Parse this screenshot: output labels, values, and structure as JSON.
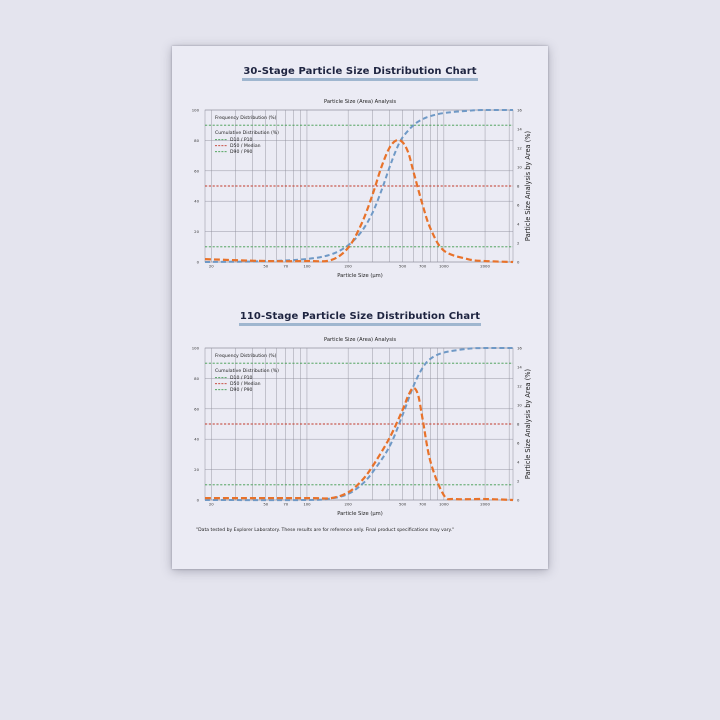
{
  "chart_data": [
    {
      "type": "line",
      "title": "30-Stage Particle Size Distribution Chart",
      "subtitle": "Particle Size (Area) Analysis",
      "xlabel": "Particle Size (µm)",
      "y2label": "Particle Size Analysis by Area (%)",
      "xscale": "log",
      "xlim": [
        18,
        3200
      ],
      "x_ticks": [
        20,
        50,
        70,
        100,
        200,
        500,
        700,
        1000,
        2000
      ],
      "ylim": [
        0,
        100
      ],
      "y_ticks": [
        0,
        20,
        40,
        60,
        80,
        100
      ],
      "y2lim": [
        0,
        16
      ],
      "y2_ticks": [
        0,
        2,
        4,
        6,
        8,
        10,
        12,
        14,
        16
      ],
      "grid": true,
      "legend": {
        "position": "top-left",
        "items": [
          {
            "label": "Frequency Distribution (%)",
            "color": "#e8722a"
          },
          {
            "label": "Cumulative Distribution (%)",
            "color": "#6f99c6"
          },
          {
            "label": "D10 / P10",
            "color": "#3c9a4a"
          },
          {
            "label": "D50 / Median",
            "color": "#c23a2a"
          },
          {
            "label": "D90 / P90",
            "color": "#3c9a4a"
          }
        ]
      },
      "reference_lines": [
        {
          "name": "D10 / P10",
          "y": 10,
          "color": "#3c9a4a"
        },
        {
          "name": "D50 / Median",
          "y": 50,
          "color": "#c23a2a"
        },
        {
          "name": "D90 / P90",
          "y": 90,
          "color": "#3c9a4a"
        }
      ],
      "series": [
        {
          "name": "Cumulative Distribution (%)",
          "axis": "left",
          "color": "#6f99c6",
          "x": [
            18,
            50,
            100,
            150,
            200,
            250,
            300,
            350,
            400,
            450,
            500,
            600,
            700,
            800,
            1000,
            1500,
            2000,
            3200
          ],
          "y": [
            0,
            0.5,
            2,
            5,
            11,
            20,
            32,
            47,
            62,
            74,
            82,
            90,
            94,
            96,
            98,
            99.5,
            100,
            100
          ]
        },
        {
          "name": "Frequency Distribution (%)",
          "axis": "right",
          "color": "#e8722a",
          "x": [
            18,
            50,
            100,
            150,
            200,
            250,
            300,
            350,
            400,
            450,
            500,
            550,
            600,
            700,
            800,
            1000,
            1500,
            2000,
            3200
          ],
          "y": [
            0.3,
            0.1,
            0.1,
            0.2,
            1.5,
            4,
            7,
            10,
            12,
            12.8,
            12.6,
            11.5,
            9.5,
            6,
            3.5,
            1.2,
            0.3,
            0.1,
            0
          ]
        }
      ]
    },
    {
      "type": "line",
      "title": "110-Stage Particle Size Distribution Chart",
      "subtitle": "Particle Size (Area) Analysis",
      "xlabel": "Particle Size (µm)",
      "y2label": "Particle Size Analysis by Area (%)",
      "xscale": "log",
      "xlim": [
        18,
        3200
      ],
      "x_ticks": [
        20,
        50,
        70,
        100,
        200,
        500,
        700,
        1000,
        2000
      ],
      "ylim": [
        0,
        100
      ],
      "y_ticks": [
        0,
        20,
        40,
        60,
        80,
        100
      ],
      "y2lim": [
        0,
        16
      ],
      "y2_ticks": [
        0,
        2,
        4,
        6,
        8,
        10,
        12,
        14,
        16
      ],
      "grid": true,
      "legend": {
        "position": "top-left",
        "items": [
          {
            "label": "Frequency Distribution (%)",
            "color": "#e8722a"
          },
          {
            "label": "Cumulative Distribution (%)",
            "color": "#6f99c6"
          },
          {
            "label": "D10 / P10",
            "color": "#3c9a4a"
          },
          {
            "label": "D50 / Median",
            "color": "#c23a2a"
          },
          {
            "label": "D90 / P90",
            "color": "#3c9a4a"
          }
        ]
      },
      "reference_lines": [
        {
          "name": "D10 / P10",
          "y": 10,
          "color": "#3c9a4a"
        },
        {
          "name": "D50 / Median",
          "y": 50,
          "color": "#c23a2a"
        },
        {
          "name": "D90 / P90",
          "y": 90,
          "color": "#3c9a4a"
        }
      ],
      "series": [
        {
          "name": "Cumulative Distribution (%)",
          "axis": "left",
          "color": "#6f99c6",
          "x": [
            18,
            100,
            150,
            200,
            250,
            300,
            400,
            500,
            600,
            700,
            800,
            1000,
            1500,
            2000,
            3200
          ],
          "y": [
            0,
            0,
            1,
            4,
            10,
            18,
            35,
            56,
            75,
            87,
            93,
            97,
            99.5,
            100,
            100
          ]
        },
        {
          "name": "Frequency Distribution (%)",
          "axis": "right",
          "color": "#e8722a",
          "x": [
            18,
            100,
            150,
            200,
            250,
            300,
            400,
            500,
            550,
            600,
            650,
            700,
            800,
            1000,
            1200,
            2000,
            3200
          ],
          "y": [
            0.2,
            0.2,
            0.2,
            0.8,
            2,
            3.5,
            6.5,
            9.5,
            11,
            11.8,
            11,
            8.5,
            4,
            0.5,
            0.1,
            0.1,
            0
          ]
        }
      ]
    }
  ],
  "footnote": "\"Data tested by Explorer Laboratory. These results are for reference only. Final product specifications may vary.\""
}
